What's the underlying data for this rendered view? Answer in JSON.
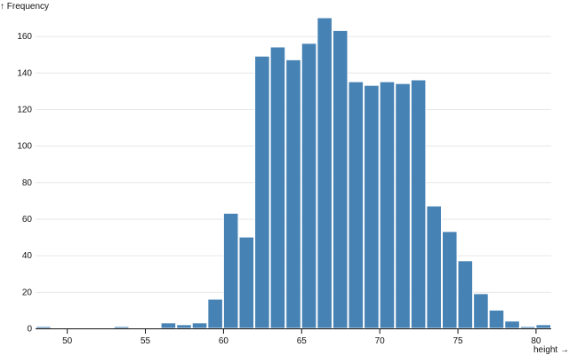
{
  "chart_data": {
    "type": "bar",
    "title": "",
    "xlabel": "height →",
    "ylabel": "↑ Frequency",
    "bar_color": "#4682b4",
    "grid": true,
    "xlim": [
      48,
      81
    ],
    "ylim": [
      0,
      170
    ],
    "x_ticks": [
      50,
      55,
      60,
      65,
      70,
      75,
      80
    ],
    "y_ticks": [
      0,
      20,
      40,
      60,
      80,
      100,
      120,
      140,
      160
    ],
    "bins": [
      {
        "x0": 48,
        "x1": 49,
        "count": 1
      },
      {
        "x0": 49,
        "x1": 50,
        "count": 0
      },
      {
        "x0": 50,
        "x1": 51,
        "count": 0
      },
      {
        "x0": 51,
        "x1": 52,
        "count": 0
      },
      {
        "x0": 52,
        "x1": 53,
        "count": 0
      },
      {
        "x0": 53,
        "x1": 54,
        "count": 1
      },
      {
        "x0": 54,
        "x1": 55,
        "count": 0
      },
      {
        "x0": 55,
        "x1": 56,
        "count": 0
      },
      {
        "x0": 56,
        "x1": 57,
        "count": 3
      },
      {
        "x0": 57,
        "x1": 58,
        "count": 2
      },
      {
        "x0": 58,
        "x1": 59,
        "count": 3
      },
      {
        "x0": 59,
        "x1": 60,
        "count": 16
      },
      {
        "x0": 60,
        "x1": 61,
        "count": 63
      },
      {
        "x0": 61,
        "x1": 62,
        "count": 50
      },
      {
        "x0": 62,
        "x1": 63,
        "count": 149
      },
      {
        "x0": 63,
        "x1": 64,
        "count": 154
      },
      {
        "x0": 64,
        "x1": 65,
        "count": 147
      },
      {
        "x0": 65,
        "x1": 66,
        "count": 156
      },
      {
        "x0": 66,
        "x1": 67,
        "count": 170
      },
      {
        "x0": 67,
        "x1": 68,
        "count": 163
      },
      {
        "x0": 68,
        "x1": 69,
        "count": 135
      },
      {
        "x0": 69,
        "x1": 70,
        "count": 133
      },
      {
        "x0": 70,
        "x1": 71,
        "count": 135
      },
      {
        "x0": 71,
        "x1": 72,
        "count": 134
      },
      {
        "x0": 72,
        "x1": 73,
        "count": 136
      },
      {
        "x0": 73,
        "x1": 74,
        "count": 67
      },
      {
        "x0": 74,
        "x1": 75,
        "count": 53
      },
      {
        "x0": 75,
        "x1": 76,
        "count": 37
      },
      {
        "x0": 76,
        "x1": 77,
        "count": 19
      },
      {
        "x0": 77,
        "x1": 78,
        "count": 10
      },
      {
        "x0": 78,
        "x1": 79,
        "count": 4
      },
      {
        "x0": 79,
        "x1": 80,
        "count": 1
      },
      {
        "x0": 80,
        "x1": 81,
        "count": 2
      }
    ]
  }
}
